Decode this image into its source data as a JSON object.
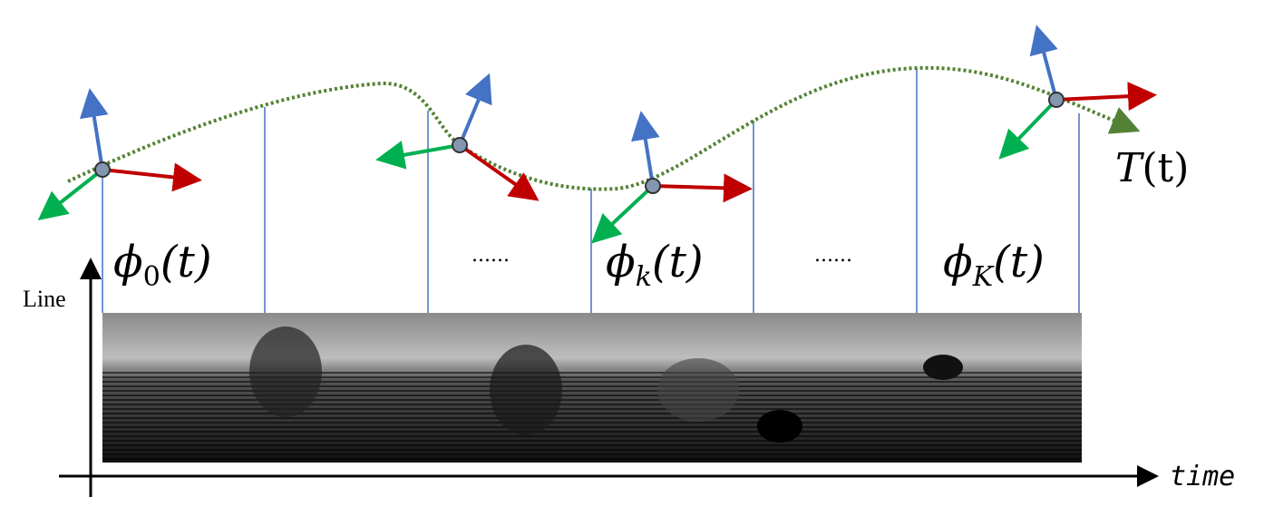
{
  "trajectory": {
    "symbol": "T",
    "arg": "(t)"
  },
  "segments": [
    {
      "symbol": "ϕ",
      "subscript": "0",
      "arg": "(t)"
    },
    {
      "ellipsis": "......"
    },
    {
      "symbol": "ϕ",
      "subscript": "k",
      "arg": "(t)"
    },
    {
      "ellipsis": "......"
    },
    {
      "symbol": "ϕ",
      "subscript": "K",
      "arg": "(t)"
    }
  ],
  "axes": {
    "y_label": "Line",
    "x_label": "time"
  }
}
